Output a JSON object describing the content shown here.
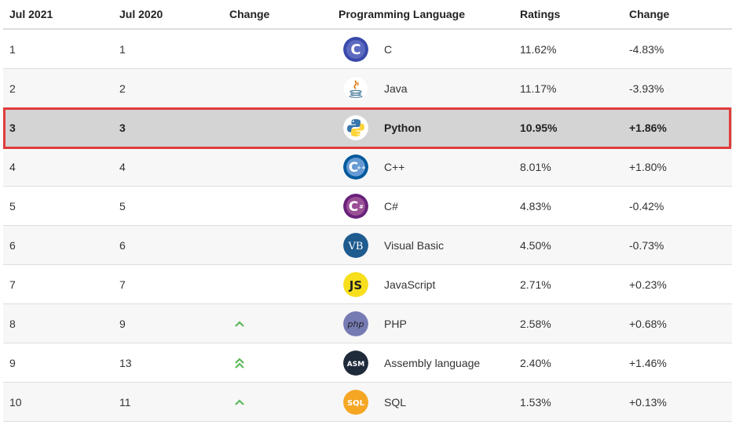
{
  "header": {
    "current": "Jul 2021",
    "previous": "Jul 2020",
    "change": "Change",
    "language": "Programming Language",
    "ratings": "Ratings",
    "change_pct": "Change"
  },
  "rows": [
    {
      "current": "1",
      "previous": "1",
      "trend": "",
      "logo": "c-logo",
      "logo_text": "C",
      "language": "C",
      "rating": "11.62%",
      "change": "-4.83%"
    },
    {
      "current": "2",
      "previous": "2",
      "trend": "",
      "logo": "java-logo",
      "logo_text": "",
      "language": "Java",
      "rating": "11.17%",
      "change": "-3.93%"
    },
    {
      "current": "3",
      "previous": "3",
      "trend": "",
      "logo": "python-logo",
      "logo_text": "",
      "language": "Python",
      "rating": "10.95%",
      "change": "+1.86%"
    },
    {
      "current": "4",
      "previous": "4",
      "trend": "",
      "logo": "cpp-logo",
      "logo_text": "C",
      "language": "C++",
      "rating": "8.01%",
      "change": "+1.80%"
    },
    {
      "current": "5",
      "previous": "5",
      "trend": "",
      "logo": "csharp-logo",
      "logo_text": "C",
      "language": "C#",
      "rating": "4.83%",
      "change": "-0.42%"
    },
    {
      "current": "6",
      "previous": "6",
      "trend": "",
      "logo": "vb-logo",
      "logo_text": "VB",
      "language": "Visual Basic",
      "rating": "4.50%",
      "change": "-0.73%"
    },
    {
      "current": "7",
      "previous": "7",
      "trend": "",
      "logo": "js-logo",
      "logo_text": "JS",
      "language": "JavaScript",
      "rating": "2.71%",
      "change": "+0.23%"
    },
    {
      "current": "8",
      "previous": "9",
      "trend": "up",
      "logo": "php-logo",
      "logo_text": "php",
      "language": "PHP",
      "rating": "2.58%",
      "change": "+0.68%"
    },
    {
      "current": "9",
      "previous": "13",
      "trend": "up-double",
      "logo": "asm-logo",
      "logo_text": "ASM",
      "language": "Assembly language",
      "rating": "2.40%",
      "change": "+1.46%"
    },
    {
      "current": "10",
      "previous": "11",
      "trend": "up",
      "logo": "sql-logo",
      "logo_text": "SQL",
      "language": "SQL",
      "rating": "1.53%",
      "change": "+0.13%"
    }
  ],
  "highlighted_language": "Python",
  "colors": {
    "highlight_border": "#e03b3b",
    "trend_up": "#5cb85c"
  }
}
